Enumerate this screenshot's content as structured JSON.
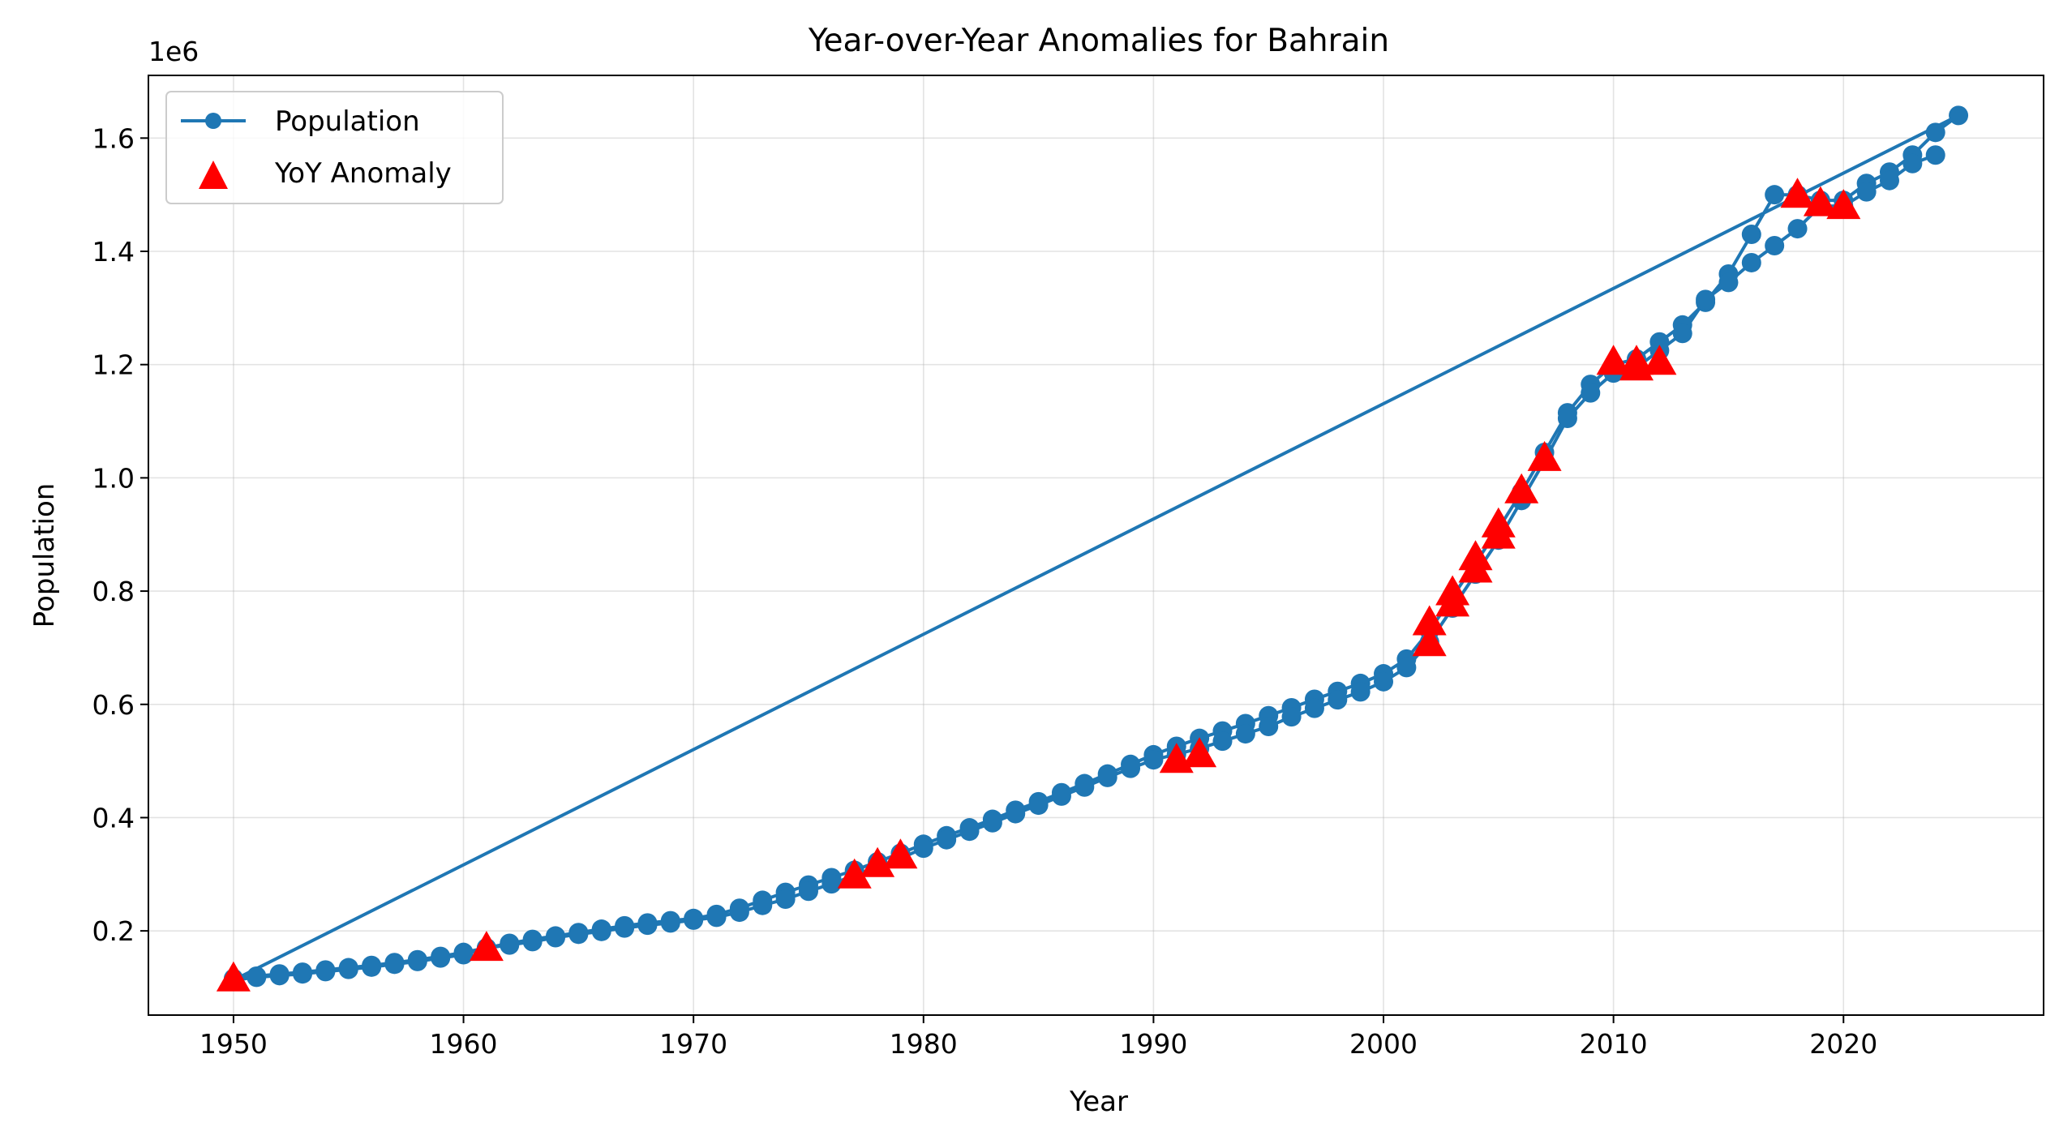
{
  "chart_data": {
    "type": "line",
    "title": "Year-over-Year Anomalies for Bahrain",
    "xlabel": "Year",
    "ylabel": "Population",
    "y_scale_label": "1e6",
    "xlim": [
      1946.3,
      2028.7
    ],
    "ylim": [
      0.0513,
      1.7107
    ],
    "x_ticks": [
      1950,
      1960,
      1970,
      1980,
      1990,
      2000,
      2010,
      2020
    ],
    "x_tick_labels": [
      "1950",
      "1960",
      "1970",
      "1980",
      "1990",
      "2000",
      "2010",
      "2020"
    ],
    "y_ticks": [
      0.2,
      0.4,
      0.6,
      0.8,
      1.0,
      1.2,
      1.4,
      1.6
    ],
    "y_tick_labels": [
      "0.2",
      "0.4",
      "0.6",
      "0.8",
      "1.0",
      "1.2",
      "1.4",
      "1.6"
    ],
    "grid": true,
    "legend_position": "upper-left",
    "series": [
      {
        "name": "Population",
        "color": "#1f77b4",
        "marker": "circle",
        "points": [
          [
            1950,
            0.116
          ],
          [
            1951,
            0.12
          ],
          [
            1952,
            0.124
          ],
          [
            1953,
            0.127
          ],
          [
            1954,
            0.131
          ],
          [
            1955,
            0.135
          ],
          [
            1956,
            0.139
          ],
          [
            1957,
            0.144
          ],
          [
            1958,
            0.149
          ],
          [
            1959,
            0.155
          ],
          [
            1960,
            0.162
          ],
          [
            1961,
            0.17
          ],
          [
            1962,
            0.178
          ],
          [
            1963,
            0.185
          ],
          [
            1964,
            0.191
          ],
          [
            1965,
            0.197
          ],
          [
            1966,
            0.203
          ],
          [
            1967,
            0.209
          ],
          [
            1968,
            0.214
          ],
          [
            1969,
            0.218
          ],
          [
            1970,
            0.222
          ],
          [
            1971,
            0.229
          ],
          [
            1972,
            0.24
          ],
          [
            1973,
            0.254
          ],
          [
            1974,
            0.268
          ],
          [
            1975,
            0.281
          ],
          [
            1976,
            0.294
          ],
          [
            1977,
            0.307
          ],
          [
            1978,
            0.322
          ],
          [
            1979,
            0.337
          ],
          [
            1980,
            0.353
          ],
          [
            1981,
            0.368
          ],
          [
            1982,
            0.382
          ],
          [
            1983,
            0.397
          ],
          [
            1984,
            0.413
          ],
          [
            1985,
            0.428
          ],
          [
            1986,
            0.444
          ],
          [
            1987,
            0.46
          ],
          [
            1988,
            0.477
          ],
          [
            1989,
            0.494
          ],
          [
            1990,
            0.511
          ],
          [
            1991,
            0.526
          ],
          [
            1992,
            0.54
          ],
          [
            1993,
            0.553
          ],
          [
            1994,
            0.566
          ],
          [
            1995,
            0.58
          ],
          [
            1996,
            0.594
          ],
          [
            1997,
            0.609
          ],
          [
            1998,
            0.623
          ],
          [
            1999,
            0.637
          ],
          [
            2000,
            0.654
          ],
          [
            2001,
            0.68
          ],
          [
            2002,
            0.73
          ],
          [
            2003,
            0.79
          ],
          [
            2004,
            0.85
          ],
          [
            2005,
            0.91
          ],
          [
            2006,
            0.975
          ],
          [
            2007,
            1.045
          ],
          [
            2008,
            1.115
          ],
          [
            2009,
            1.165
          ],
          [
            2010,
            1.2
          ],
          [
            2011,
            1.21
          ],
          [
            2012,
            1.24
          ],
          [
            2013,
            1.27
          ],
          [
            2014,
            1.31
          ],
          [
            2015,
            1.36
          ],
          [
            2016,
            1.43
          ],
          [
            2017,
            1.5
          ],
          [
            2018,
            1.5
          ],
          [
            2019,
            1.49
          ],
          [
            2020,
            1.49
          ],
          [
            2021,
            1.52
          ],
          [
            2022,
            1.54
          ],
          [
            2023,
            1.57
          ],
          [
            2024,
            1.61
          ],
          [
            2025,
            1.64
          ],
          [
            1950,
            0.113
          ],
          [
            1951,
            0.118
          ],
          [
            1952,
            0.121
          ],
          [
            1953,
            0.124
          ],
          [
            1954,
            0.128
          ],
          [
            1955,
            0.132
          ],
          [
            1956,
            0.136
          ],
          [
            1957,
            0.141
          ],
          [
            1958,
            0.146
          ],
          [
            1959,
            0.152
          ],
          [
            1960,
            0.158
          ],
          [
            1961,
            0.17
          ],
          [
            1962,
            0.175
          ],
          [
            1963,
            0.181
          ],
          [
            1964,
            0.188
          ],
          [
            1965,
            0.194
          ],
          [
            1966,
            0.199
          ],
          [
            1967,
            0.205
          ],
          [
            1968,
            0.21
          ],
          [
            1969,
            0.214
          ],
          [
            1970,
            0.219
          ],
          [
            1971,
            0.224
          ],
          [
            1972,
            0.233
          ],
          [
            1973,
            0.245
          ],
          [
            1974,
            0.256
          ],
          [
            1975,
            0.27
          ],
          [
            1976,
            0.283
          ],
          [
            1977,
            0.298
          ],
          [
            1978,
            0.313
          ],
          [
            1979,
            0.328
          ],
          [
            1980,
            0.346
          ],
          [
            1981,
            0.361
          ],
          [
            1982,
            0.376
          ],
          [
            1983,
            0.391
          ],
          [
            1984,
            0.407
          ],
          [
            1985,
            0.422
          ],
          [
            1986,
            0.438
          ],
          [
            1987,
            0.454
          ],
          [
            1988,
            0.471
          ],
          [
            1989,
            0.487
          ],
          [
            1990,
            0.502
          ],
          [
            1991,
            0.512
          ],
          [
            1992,
            0.522
          ],
          [
            1993,
            0.535
          ],
          [
            1994,
            0.548
          ],
          [
            1995,
            0.561
          ],
          [
            1996,
            0.578
          ],
          [
            1997,
            0.593
          ],
          [
            1998,
            0.608
          ],
          [
            1999,
            0.622
          ],
          [
            2000,
            0.64
          ],
          [
            2001,
            0.665
          ],
          [
            2002,
            0.71
          ],
          [
            2003,
            0.77
          ],
          [
            2004,
            0.83
          ],
          [
            2005,
            0.89
          ],
          [
            2006,
            0.96
          ],
          [
            2007,
            1.03
          ],
          [
            2008,
            1.105
          ],
          [
            2009,
            1.15
          ],
          [
            2010,
            1.185
          ],
          [
            2011,
            1.195
          ],
          [
            2012,
            1.225
          ],
          [
            2013,
            1.255
          ],
          [
            2014,
            1.315
          ],
          [
            2015,
            1.345
          ],
          [
            2016,
            1.38
          ],
          [
            2017,
            1.41
          ],
          [
            2018,
            1.44
          ],
          [
            2019,
            1.48
          ],
          [
            2020,
            1.48
          ],
          [
            2021,
            1.505
          ],
          [
            2022,
            1.525
          ],
          [
            2023,
            1.555
          ],
          [
            2024,
            1.57
          ]
        ]
      },
      {
        "name": "YoY Anomaly",
        "color": "#ff0000",
        "marker": "triangle",
        "points": [
          [
            1950,
            0.116
          ],
          [
            1961,
            0.17
          ],
          [
            1977,
            0.298
          ],
          [
            1978,
            0.318
          ],
          [
            1979,
            0.333
          ],
          [
            1991,
            0.502
          ],
          [
            1992,
            0.512
          ],
          [
            2002,
            0.708
          ],
          [
            2002,
            0.745
          ],
          [
            2003,
            0.778
          ],
          [
            2003,
            0.798
          ],
          [
            2004,
            0.838
          ],
          [
            2004,
            0.86
          ],
          [
            2005,
            0.898
          ],
          [
            2005,
            0.918
          ],
          [
            2006,
            0.978
          ],
          [
            2007,
            1.035
          ],
          [
            2010,
            1.205
          ],
          [
            2011,
            1.195
          ],
          [
            2011,
            1.205
          ],
          [
            2012,
            1.205
          ],
          [
            2018,
            1.5
          ],
          [
            2019,
            1.485
          ],
          [
            2020,
            1.48
          ]
        ]
      }
    ]
  }
}
